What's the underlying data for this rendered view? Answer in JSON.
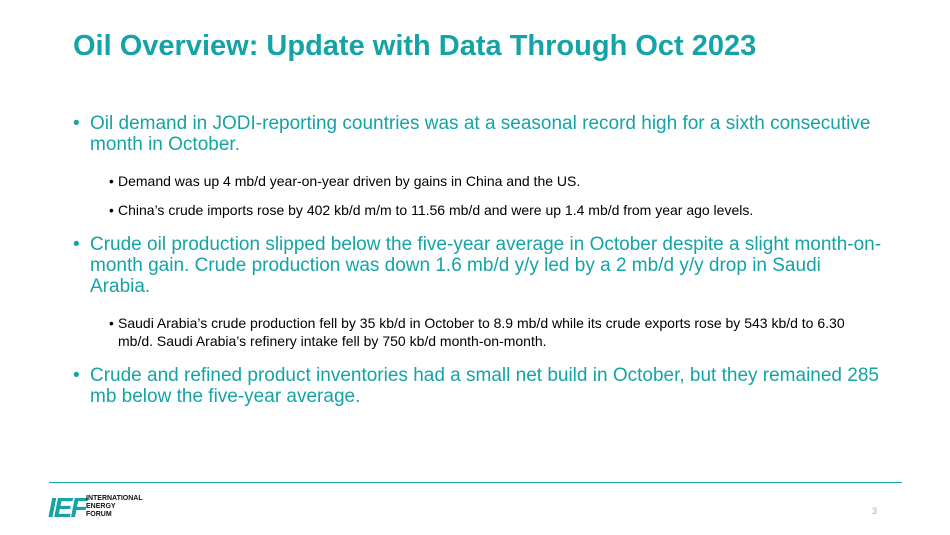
{
  "slide": {
    "title": "Oil Overview: Update with Data Through Oct 2023",
    "bullets": [
      {
        "text": "Oil demand in JODI-reporting countries was at a seasonal record high for a sixth consecutive month in October.",
        "sub": [
          "Demand was up 4 mb/d year-on-year driven by gains in China and the US.",
          "China’s crude imports rose by 402 kb/d m/m to 11.56 mb/d and were up 1.4 mb/d from year ago levels."
        ]
      },
      {
        "text": "Crude oil production slipped below the five-year average in October despite a slight month-on-month gain. Crude production was down 1.6 mb/d y/y led by a 2 mb/d y/y drop in Saudi Arabia.",
        "sub": [
          "Saudi Arabia’s crude production fell by 35 kb/d in October to 8.9 mb/d while its crude exports rose by 543 kb/d to 6.30 mb/d. Saudi Arabia’s refinery intake fell by 750 kb/d month-on-month."
        ]
      },
      {
        "text": "Crude and refined product inventories had a small net build in October, but they remained 285 mb below the five-year average.",
        "sub": []
      }
    ],
    "page_number": "3"
  },
  "logo": {
    "mark": "IEF",
    "lines": [
      "INTERNATIONAL",
      "ENERGY",
      "FORUM"
    ]
  },
  "colors": {
    "accent": "#14a3a6",
    "body_text": "#000000"
  }
}
